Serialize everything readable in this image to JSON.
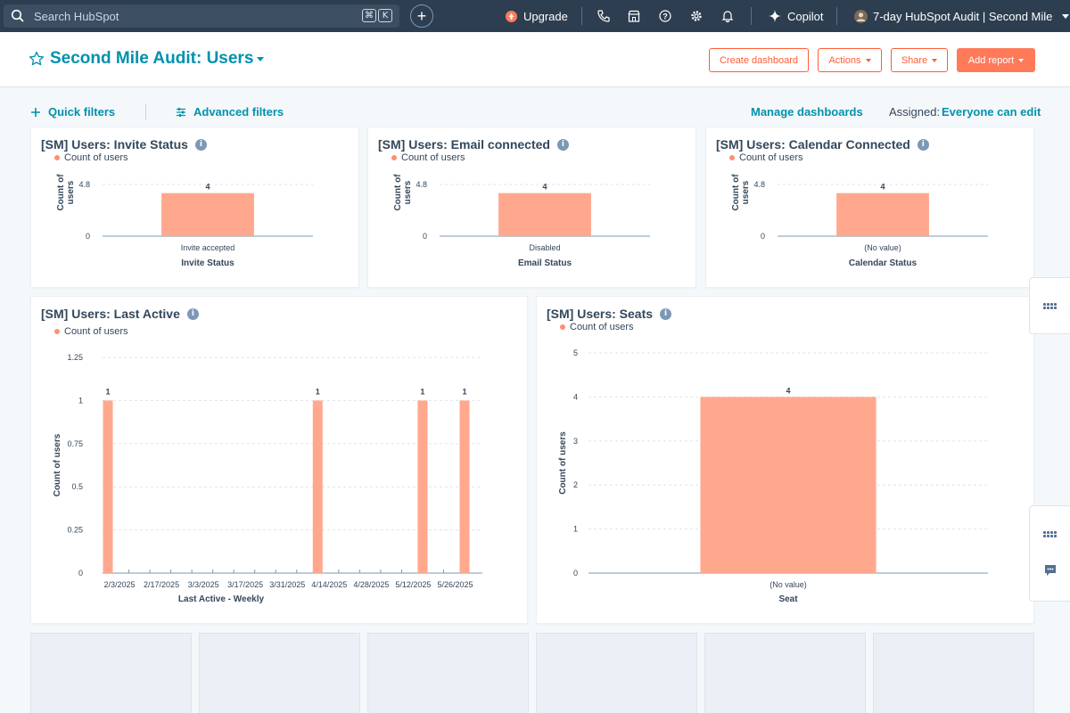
{
  "topnav": {
    "search_placeholder": "Search HubSpot",
    "shortcut_keys": [
      "⌘",
      "K"
    ],
    "upgrade_label": "Upgrade",
    "copilot_label": "Copilot",
    "account_label": "7-day HubSpot Audit | Second Mile"
  },
  "header": {
    "title": "Second Mile Audit: Users",
    "buttons": {
      "create_dashboard": "Create dashboard",
      "actions": "Actions",
      "share": "Share",
      "add_report": "Add report"
    }
  },
  "filters": {
    "quick_filters": "Quick filters",
    "advanced_filters": "Advanced filters",
    "manage_dashboards": "Manage dashboards",
    "assigned_label": "Assigned:",
    "assigned_value": "Everyone can edit"
  },
  "reports": [
    {
      "title": "[SM] Users: Invite Status",
      "legend": "Count of users"
    },
    {
      "title": "[SM] Users: Email connected",
      "legend": "Count of users"
    },
    {
      "title": "[SM] Users: Calendar Connected",
      "legend": "Count of users"
    },
    {
      "title": "[SM] Users: Last Active",
      "legend": "Count of users"
    },
    {
      "title": "[SM] Users: Seats",
      "legend": "Count of users"
    }
  ],
  "colors": {
    "bar": "#ffa88e",
    "brand": "#0091ae",
    "accent": "#ff7a59",
    "nav_bg": "#2d3e50"
  },
  "chart_data": [
    {
      "type": "bar",
      "title": "[SM] Users: Invite Status",
      "categories": [
        "Invite accepted"
      ],
      "series": [
        {
          "name": "Count of users",
          "values": [
            4
          ]
        }
      ],
      "xlabel": "Invite Status",
      "ylabel": "Count of users",
      "yticks": [
        "0",
        "4.8"
      ],
      "ylim": [
        0,
        4.8
      ],
      "data_labels": [
        "4"
      ]
    },
    {
      "type": "bar",
      "title": "[SM] Users: Email connected",
      "categories": [
        "Disabled"
      ],
      "series": [
        {
          "name": "Count of users",
          "values": [
            4
          ]
        }
      ],
      "xlabel": "Email Status",
      "ylabel": "Count of users",
      "yticks": [
        "0",
        "4.8"
      ],
      "ylim": [
        0,
        4.8
      ],
      "data_labels": [
        "4"
      ]
    },
    {
      "type": "bar",
      "title": "[SM] Users: Calendar Connected",
      "categories": [
        "(No value)"
      ],
      "series": [
        {
          "name": "Count of users",
          "values": [
            4
          ]
        }
      ],
      "xlabel": "Calendar Status",
      "ylabel": "Count of users",
      "yticks": [
        "0",
        "4.8"
      ],
      "ylim": [
        0,
        4.8
      ],
      "data_labels": [
        "4"
      ]
    },
    {
      "type": "bar",
      "title": "[SM] Users: Last Active",
      "x": [
        "2/3/2025",
        "2/10/2025",
        "2/17/2025",
        "2/24/2025",
        "3/3/2025",
        "3/10/2025",
        "3/17/2025",
        "3/24/2025",
        "3/31/2025",
        "4/7/2025",
        "4/14/2025",
        "4/21/2025",
        "4/28/2025",
        "5/5/2025",
        "5/12/2025",
        "5/19/2025",
        "5/26/2025",
        "6/2/2025"
      ],
      "series": [
        {
          "name": "Count of users",
          "values": [
            1,
            0,
            0,
            0,
            0,
            0,
            0,
            0,
            0,
            0,
            1,
            0,
            0,
            0,
            0,
            1,
            0,
            1
          ]
        }
      ],
      "tick_labels": [
        "2/3/2025",
        "2/17/2025",
        "3/3/2025",
        "3/17/2025",
        "3/31/2025",
        "4/14/2025",
        "4/28/2025",
        "5/12/2025",
        "5/26/2025"
      ],
      "xlabel": "Last Active - Weekly",
      "ylabel": "Count of users",
      "yticks": [
        "0",
        "0.25",
        "0.5",
        "0.75",
        "1",
        "1.25"
      ],
      "ylim": [
        0,
        1.25
      ],
      "data_labels": [
        "1",
        "1",
        "1",
        "1"
      ]
    },
    {
      "type": "bar",
      "title": "[SM] Users: Seats",
      "categories": [
        "(No value)"
      ],
      "series": [
        {
          "name": "Count of users",
          "values": [
            4
          ]
        }
      ],
      "xlabel": "Seat",
      "ylabel": "Count of users",
      "yticks": [
        "0",
        "1",
        "2",
        "3",
        "4",
        "5"
      ],
      "ylim": [
        0,
        5
      ],
      "data_labels": [
        "4"
      ]
    }
  ]
}
